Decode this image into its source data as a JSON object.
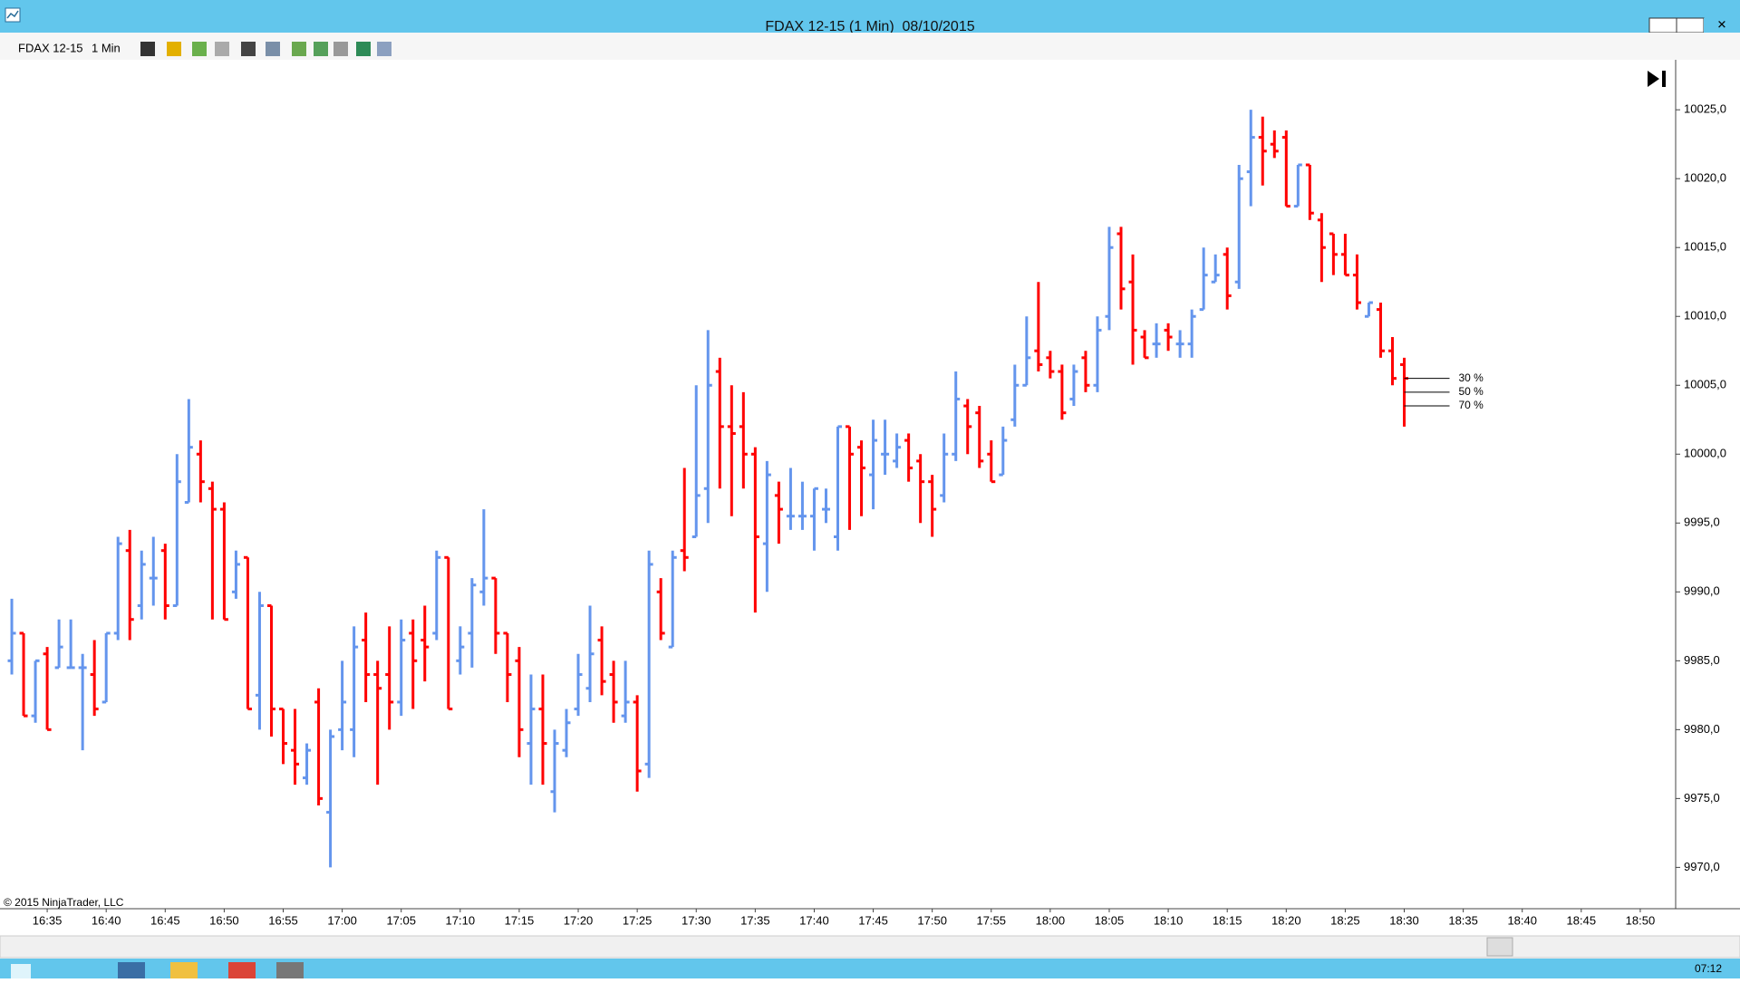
{
  "window": {
    "title": "FDAX 12-15 (1 Min)  08/10/2015"
  },
  "toolbar": {
    "instrument": "FDAX 12-15",
    "interval": "1 Min"
  },
  "chart_data": {
    "type": "ohlc",
    "copyright": "© 2015 NinjaTrader, LLC",
    "up_color": "#6495ed",
    "down_color": "#ff0000",
    "grid": false,
    "xlim": [
      "16:31",
      "18:53"
    ],
    "xticks": [
      "16:35",
      "16:40",
      "16:45",
      "16:50",
      "16:55",
      "17:00",
      "17:05",
      "17:10",
      "17:15",
      "17:20",
      "17:25",
      "17:30",
      "17:35",
      "17:40",
      "17:45",
      "17:50",
      "17:55",
      "18:00",
      "18:05",
      "18:10",
      "18:15",
      "18:20",
      "18:25",
      "18:30",
      "18:35",
      "18:40",
      "18:45",
      "18:50"
    ],
    "ylim": [
      9967,
      10028.3
    ],
    "yticks": [
      {
        "value": 9970,
        "label": "9970,0"
      },
      {
        "value": 9975,
        "label": "9975,0"
      },
      {
        "value": 9980,
        "label": "9980,0"
      },
      {
        "value": 9985,
        "label": "9985,0"
      },
      {
        "value": 9990,
        "label": "9990,0"
      },
      {
        "value": 9995,
        "label": "9995,0"
      },
      {
        "value": 10000,
        "label": "10000,0"
      },
      {
        "value": 10005,
        "label": "10005,0"
      },
      {
        "value": 10010,
        "label": "10010,0"
      },
      {
        "value": 10015,
        "label": "10015,0"
      },
      {
        "value": 10020,
        "label": "10020,0"
      },
      {
        "value": 10025,
        "label": "10025,0"
      }
    ],
    "x": [
      "16:32",
      "16:33",
      "16:34",
      "16:35",
      "16:36",
      "16:37",
      "16:38",
      "16:39",
      "16:40",
      "16:41",
      "16:42",
      "16:43",
      "16:44",
      "16:45",
      "16:46",
      "16:47",
      "16:48",
      "16:49",
      "16:50",
      "16:51",
      "16:52",
      "16:53",
      "16:54",
      "16:55",
      "16:56",
      "16:57",
      "16:58",
      "16:59",
      "17:00",
      "17:01",
      "17:02",
      "17:03",
      "17:04",
      "17:05",
      "17:06",
      "17:07",
      "17:08",
      "17:09",
      "17:10",
      "17:11",
      "17:12",
      "17:13",
      "17:14",
      "17:15",
      "17:16",
      "17:17",
      "17:18",
      "17:19",
      "17:20",
      "17:21",
      "17:22",
      "17:23",
      "17:24",
      "17:25",
      "17:26",
      "17:27",
      "17:28",
      "17:29",
      "17:30",
      "17:31",
      "17:32",
      "17:33",
      "17:34",
      "17:35",
      "17:36",
      "17:37",
      "17:38",
      "17:39",
      "17:40",
      "17:41",
      "17:42",
      "17:43",
      "17:44",
      "17:45",
      "17:46",
      "17:47",
      "17:48",
      "17:49",
      "17:50",
      "17:51",
      "17:52",
      "17:53",
      "17:54",
      "17:55",
      "17:56",
      "17:57",
      "17:58",
      "17:59",
      "18:00",
      "18:01",
      "18:02",
      "18:03",
      "18:04",
      "18:05",
      "18:06",
      "18:07",
      "18:08",
      "18:09",
      "18:10",
      "18:11",
      "18:12",
      "18:13",
      "18:14",
      "18:15",
      "18:16",
      "18:17",
      "18:18",
      "18:19",
      "18:20",
      "18:21",
      "18:22",
      "18:23",
      "18:24",
      "18:25",
      "18:26",
      "18:27",
      "18:28",
      "18:29",
      "18:30"
    ],
    "open": [
      9985,
      9987,
      9981,
      9985.5,
      9984.5,
      9984.5,
      9984.5,
      9984,
      9982,
      9987,
      9993,
      9989,
      9991,
      9993,
      9989,
      9996.5,
      10000,
      9997.5,
      9996,
      9990,
      9992.5,
      9982.5,
      9989,
      9981.5,
      9978.5,
      9976.5,
      9982,
      9974,
      9980,
      9980,
      9986.5,
      9984,
      9984,
      9982,
      9987,
      9986.5,
      9987,
      9992.5,
      9985,
      9987,
      9990,
      9991,
      9987,
      9985,
      9979,
      9981.5,
      9975.5,
      9978.5,
      9981.5,
      9983,
      9986.5,
      9984,
      9981,
      9982,
      9977.5,
      9990,
      9986,
      9993,
      9994,
      9997.5,
      10006,
      10002,
      10002,
      10000,
      9993.5,
      9997,
      9995.5,
      9995.5,
      9995.5,
      9996,
      9994,
      10002,
      10000.5,
      9998.5,
      10000,
      9999.5,
      10001,
      9999.5,
      9998,
      9997,
      10000,
      10003.5,
      10003,
      10000,
      9998.5,
      10002.5,
      10005,
      10007.5,
      10007,
      10006,
      10004,
      10007,
      10005,
      10010,
      10016,
      10012.5,
      10008.5,
      10008,
      10009,
      10008,
      10008,
      10010.5,
      10012.5,
      10014.5,
      10012.5,
      10020.5,
      10023,
      10022.5,
      10023,
      10018,
      10021,
      10017,
      10016,
      10014.5,
      10013,
      10010,
      10010.5,
      10007.5,
      10006.5
    ],
    "high": [
      9989.5,
      9987,
      9985,
      9986,
      9988,
      9988,
      9985.5,
      9986.5,
      9987,
      9994,
      9994.5,
      9993,
      9994,
      9993.5,
      10000,
      10004,
      10001,
      9998,
      9996.5,
      9993,
      9992.5,
      9990,
      9989,
      9981.5,
      9981.5,
      9979,
      9983,
      9980,
      9985,
      9987.5,
      9988.5,
      9985,
      9987.5,
      9988,
      9988,
      9989,
      9993,
      9992.5,
      9987.5,
      9991,
      9996,
      9991,
      9987,
      9986,
      9984,
      9984,
      9980,
      9981.5,
      9985.5,
      9989,
      9987.5,
      9985,
      9985,
      9982.5,
      9993,
      9991,
      9993,
      9999,
      10005,
      10009,
      10007,
      10005,
      10004.5,
      10000.5,
      9999.5,
      9998,
      9999,
      9998,
      9997.5,
      9997.5,
      10002,
      10002,
      10001,
      10002.5,
      10002.5,
      10001.5,
      10001.5,
      10000,
      9998.5,
      10001.5,
      10006,
      10004,
      10003.5,
      10001,
      10002,
      10006.5,
      10010,
      10012.5,
      10007.5,
      10006.5,
      10006.5,
      10007.5,
      10010,
      10016.5,
      10016.5,
      10014.5,
      10009,
      10009.5,
      10009.5,
      10009,
      10010.5,
      10015,
      10014.5,
      10015,
      10021,
      10025,
      10024.5,
      10023.5,
      10023.5,
      10021,
      10021,
      10017.5,
      10016,
      10016,
      10014.5,
      10011,
      10011,
      10008.5,
      10007
    ],
    "low": [
      9984,
      9981,
      9980.5,
      9980,
      9984.5,
      9984.5,
      9978.5,
      9981,
      9982,
      9986.5,
      9986.5,
      9988,
      9989,
      9988,
      9989,
      9996.5,
      9996.5,
      9988,
      9988,
      9989.5,
      9981.5,
      9980,
      9979.5,
      9977.5,
      9976,
      9976,
      9974.5,
      9970,
      9978.5,
      9978,
      9982,
      9976,
      9980,
      9981,
      9981.5,
      9983.5,
      9986.5,
      9981.5,
      9984,
      9984.5,
      9989,
      9985.5,
      9982,
      9978,
      9976,
      9976,
      9974,
      9978,
      9981,
      9982,
      9982.5,
      9980.5,
      9980.5,
      9975.5,
      9976.5,
      9986.5,
      9986,
      9991.5,
      9994,
      9995,
      9997.5,
      9995.5,
      9997.5,
      9988.5,
      9990,
      9993.5,
      9994.5,
      9994.5,
      9993,
      9995,
      9993,
      9994.5,
      9995.5,
      9996,
      9998.5,
      9999,
      9998,
      9995,
      9994,
      9996.5,
      9999.5,
      10000,
      9999,
      9998,
      9998.5,
      10002,
      10005,
      10006,
      10005.5,
      10002.5,
      10003.5,
      10004.5,
      10004.5,
      10009,
      10010.5,
      10006.5,
      10007,
      10007,
      10007.5,
      10007,
      10007,
      10010.5,
      10012.5,
      10010.5,
      10012,
      10018,
      10019.5,
      10021.5,
      10018,
      10018,
      10017,
      10012.5,
      10013,
      10013,
      10010.5,
      10010,
      10007,
      10005,
      10002
    ],
    "close": [
      9987,
      9981,
      9985,
      9980,
      9986,
      9984.5,
      9984.5,
      9981.5,
      9987,
      9993.5,
      9988,
      9992,
      9991,
      9989,
      9998,
      10000.5,
      9998,
      9996,
      9988,
      9992,
      9981.5,
      9989,
      9981.5,
      9979,
      9977.5,
      9978.5,
      9975,
      9979.5,
      9982,
      9986,
      9984,
      9983,
      9982,
      9986.5,
      9985,
      9986,
      9992.5,
      9981.5,
      9986,
      9990.5,
      9991,
      9987,
      9984,
      9980,
      9981.5,
      9979,
      9979,
      9980.5,
      9984,
      9985.5,
      9983.5,
      9982,
      9982,
      9977,
      9992,
      9987,
      9992.5,
      9992.5,
      9997,
      10005,
      10002,
      10001.5,
      10000,
      9994,
      9998.5,
      9996,
      9995.5,
      9995.5,
      9997.5,
      9996,
      10002,
      10000,
      9999,
      10001,
      10000,
      10000.5,
      9999,
      9998,
      9996,
      10000,
      10004,
      10002,
      9999.5,
      9998,
      10001,
      10005,
      10007,
      10006.5,
      10006,
      10003,
      10006,
      10005,
      10009,
      10015,
      10012,
      10009,
      10007,
      10008,
      10008.5,
      10008,
      10010,
      10013,
      10013,
      10011.5,
      10020,
      10023,
      10022,
      10022,
      10018,
      10021,
      10017.5,
      10015,
      10014.5,
      10013,
      10011,
      10011,
      10007.5,
      10005.5,
      10005.5
    ],
    "levels": [
      {
        "label": "30 %",
        "value": 10005.5
      },
      {
        "label": "50 %",
        "value": 10004.5
      },
      {
        "label": "70 %",
        "value": 10003.5
      }
    ]
  },
  "taskbar": {
    "clock": "07:12"
  }
}
